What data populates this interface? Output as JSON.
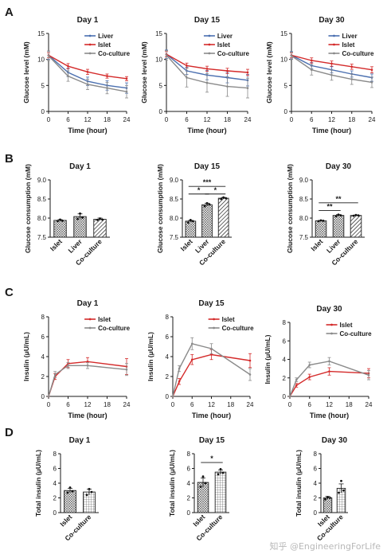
{
  "figure": {
    "panel_labels": [
      "A",
      "B",
      "C",
      "D"
    ],
    "colors": {
      "Liver": "#4a6fb0",
      "Islet": "#d42a2a",
      "Co-culture": "#8a8a8a",
      "bar_edge": "#222222",
      "axis": "#1a1a1a"
    },
    "watermark": "知乎 @EngineeringForLife"
  },
  "chart_data": [
    {
      "id": "A1",
      "panel": "A",
      "type": "line",
      "title": "Day 1",
      "xlabel": "Time (hour)",
      "ylabel": "Glucose level (mM)",
      "xlim": [
        0,
        24
      ],
      "ylim": [
        0,
        15
      ],
      "x_ticks": [
        0,
        6,
        12,
        18,
        24
      ],
      "y_ticks": [
        0,
        5,
        10,
        15
      ],
      "x": [
        0,
        6,
        12,
        18,
        24
      ],
      "legend": "top-right",
      "series": [
        {
          "name": "Liver",
          "values": [
            10.8,
            7.5,
            5.8,
            5.0,
            4.5
          ],
          "err": [
            0.8,
            0.8,
            0.8,
            0.9,
            1.0
          ]
        },
        {
          "name": "Islet",
          "values": [
            10.8,
            8.7,
            7.6,
            6.8,
            6.3
          ],
          "err": [
            0.5,
            0.5,
            0.5,
            0.4,
            0.4
          ]
        },
        {
          "name": "Co-culture",
          "values": [
            10.7,
            6.8,
            5.2,
            4.5,
            3.8
          ],
          "err": [
            0.9,
            1.0,
            1.0,
            1.1,
            1.2
          ]
        }
      ]
    },
    {
      "id": "A2",
      "panel": "A",
      "type": "line",
      "title": "Day 15",
      "xlabel": "Time (hour)",
      "ylabel": "Glucose level (mM)",
      "xlim": [
        0,
        24
      ],
      "ylim": [
        0,
        15
      ],
      "x_ticks": [
        0,
        6,
        12,
        18,
        24
      ],
      "y_ticks": [
        0,
        5,
        10,
        15
      ],
      "x": [
        0,
        6,
        12,
        18,
        24
      ],
      "legend": "top-right",
      "series": [
        {
          "name": "Liver",
          "values": [
            11.0,
            7.8,
            7.0,
            6.5,
            6.0
          ],
          "err": [
            0.8,
            0.7,
            0.9,
            1.0,
            1.1
          ]
        },
        {
          "name": "Islet",
          "values": [
            11.0,
            8.8,
            8.2,
            7.8,
            7.5
          ],
          "err": [
            0.5,
            0.5,
            0.5,
            0.5,
            0.6
          ]
        },
        {
          "name": "Co-culture",
          "values": [
            10.8,
            6.5,
            5.5,
            4.8,
            4.5
          ],
          "err": [
            0.9,
            1.8,
            1.8,
            1.9,
            1.9
          ]
        }
      ]
    },
    {
      "id": "A3",
      "panel": "A",
      "type": "line",
      "title": "Day 30",
      "xlabel": "Time (hour)",
      "ylabel": "Glucose level (mM)",
      "xlim": [
        0,
        24
      ],
      "ylim": [
        0,
        15
      ],
      "x_ticks": [
        0,
        6,
        12,
        18,
        24
      ],
      "y_ticks": [
        0,
        5,
        10,
        15
      ],
      "x": [
        0,
        6,
        12,
        18,
        24
      ],
      "legend": "top-right",
      "series": [
        {
          "name": "Liver",
          "values": [
            10.8,
            8.8,
            8.0,
            7.2,
            6.5
          ],
          "err": [
            0.7,
            0.6,
            0.6,
            0.6,
            0.7
          ]
        },
        {
          "name": "Islet",
          "values": [
            10.8,
            9.8,
            9.2,
            8.6,
            8.0
          ],
          "err": [
            0.5,
            0.5,
            0.5,
            0.5,
            0.6
          ]
        },
        {
          "name": "Co-culture",
          "values": [
            10.7,
            8.0,
            7.0,
            6.2,
            5.6
          ],
          "err": [
            0.7,
            1.0,
            1.0,
            1.0,
            1.0
          ]
        }
      ]
    },
    {
      "id": "B1",
      "panel": "B",
      "type": "bar",
      "title": "Day 1",
      "ylabel": "Glucose consumption (mM)",
      "ylim": [
        7.5,
        9.0
      ],
      "y_ticks": [
        "7.5",
        "8.0",
        "8.5",
        "9.0"
      ],
      "categories": [
        "Islet",
        "Liver",
        "Co-culture"
      ],
      "values": [
        7.94,
        8.04,
        7.97
      ],
      "err": [
        0.02,
        0.07,
        0.03
      ],
      "points": [
        [
          7.92,
          7.96,
          7.93
        ],
        [
          7.98,
          8.12,
          8.01
        ],
        [
          7.95,
          7.99,
          7.96
        ]
      ],
      "significance": []
    },
    {
      "id": "B2",
      "panel": "B",
      "type": "bar",
      "title": "Day 15",
      "ylabel": "Glucose consumption (mM)",
      "ylim": [
        7.5,
        9.0
      ],
      "y_ticks": [
        "7.5",
        "8.0",
        "8.5",
        "9.0"
      ],
      "categories": [
        "Islet",
        "Liver",
        "Co-culture"
      ],
      "values": [
        7.92,
        8.35,
        8.52
      ],
      "err": [
        0.02,
        0.04,
        0.02
      ],
      "points": [
        [
          7.88,
          7.95,
          7.92
        ],
        [
          8.31,
          8.39,
          8.36
        ],
        [
          8.5,
          8.54,
          8.52
        ]
      ],
      "significance": [
        {
          "from": 0,
          "to": 2,
          "y": 8.83,
          "label": "***"
        },
        {
          "from": 0,
          "to": 1,
          "y": 8.63,
          "label": "*"
        },
        {
          "from": 1,
          "to": 2,
          "y": 8.63,
          "label": "*"
        }
      ]
    },
    {
      "id": "B3",
      "panel": "B",
      "type": "bar",
      "title": "Day 30",
      "ylabel": "Glucose consumption (mM)",
      "ylim": [
        7.5,
        9.0
      ],
      "y_ticks": [
        "7.5",
        "8.0",
        "8.5",
        "9.0"
      ],
      "categories": [
        "Islet",
        "Liver",
        "Co-culture"
      ],
      "values": [
        7.93,
        8.07,
        8.07
      ],
      "err": [
        0.01,
        0.02,
        0.01
      ],
      "points": [
        [
          7.92,
          7.94,
          7.93
        ],
        [
          8.05,
          8.09,
          8.07
        ],
        [
          8.06,
          8.08,
          8.07
        ]
      ],
      "significance": [
        {
          "from": 0,
          "to": 2,
          "y": 8.4,
          "label": "**"
        },
        {
          "from": 0,
          "to": 1,
          "y": 8.2,
          "label": "**"
        }
      ]
    },
    {
      "id": "C1",
      "panel": "C",
      "type": "line",
      "title": "Day 1",
      "xlabel": "Time (hour)",
      "ylabel": "Insulin  (μU/mL)",
      "xlim": [
        0,
        24
      ],
      "ylim": [
        0,
        8
      ],
      "x_ticks": [
        0,
        6,
        12,
        18,
        24
      ],
      "y_ticks": [
        0,
        2,
        4,
        6,
        8
      ],
      "x": [
        0,
        2,
        6,
        12,
        24
      ],
      "legend": "top-right",
      "series": [
        {
          "name": "Islet",
          "values": [
            0,
            2.0,
            3.3,
            3.5,
            3.0
          ],
          "err": [
            0,
            0.3,
            0.4,
            0.4,
            0.8
          ]
        },
        {
          "name": "Co-culture",
          "values": [
            0,
            2.2,
            3.1,
            3.1,
            2.7
          ],
          "err": [
            0,
            0.3,
            0.3,
            0.3,
            0.6
          ]
        }
      ]
    },
    {
      "id": "C2",
      "panel": "C",
      "type": "line",
      "title": "Day 15",
      "xlabel": "Time (hour)",
      "ylabel": "Insulin  (μU/mL)",
      "xlim": [
        0,
        24
      ],
      "ylim": [
        0,
        8
      ],
      "x_ticks": [
        0,
        6,
        12,
        18,
        24
      ],
      "y_ticks": [
        0,
        2,
        4,
        6,
        8
      ],
      "x": [
        0,
        2,
        6,
        12,
        24
      ],
      "legend": "top-right",
      "series": [
        {
          "name": "Islet",
          "values": [
            0,
            1.5,
            3.7,
            4.2,
            3.6
          ],
          "err": [
            0,
            0.3,
            0.5,
            0.5,
            0.7
          ]
        },
        {
          "name": "Co-culture",
          "values": [
            0,
            2.8,
            5.3,
            4.8,
            2.2
          ],
          "err": [
            0,
            0.3,
            0.6,
            0.5,
            0.6
          ]
        }
      ]
    },
    {
      "id": "C3",
      "panel": "C",
      "type": "line",
      "title": "Day 30",
      "xlabel": "Time (hour)",
      "ylabel": "Insulin  (μU/mL)",
      "xlim": [
        0,
        24
      ],
      "ylim": [
        0,
        8
      ],
      "x_ticks": [
        0,
        6,
        12,
        18,
        24
      ],
      "y_ticks": [
        0,
        2,
        4,
        6,
        8
      ],
      "x": [
        0,
        2,
        6,
        12,
        24
      ],
      "legend": "top-right",
      "series": [
        {
          "name": "Islet",
          "values": [
            0,
            1.2,
            2.1,
            2.7,
            2.5
          ],
          "err": [
            0,
            0.2,
            0.3,
            0.4,
            0.5
          ]
        },
        {
          "name": "Co-culture",
          "values": [
            0,
            1.8,
            3.4,
            3.8,
            2.3
          ],
          "err": [
            0,
            0.2,
            0.3,
            0.4,
            0.5
          ]
        }
      ]
    },
    {
      "id": "D1",
      "panel": "D",
      "type": "bar",
      "title": "Day 1",
      "ylabel": "Total insulin  (μU/mL)",
      "ylim": [
        0,
        8
      ],
      "y_ticks": [
        "0",
        "2",
        "4",
        "6",
        "8"
      ],
      "categories": [
        "Islet",
        "Co-culture"
      ],
      "values": [
        3.0,
        2.8
      ],
      "err": [
        0.3,
        0.4
      ],
      "points": [
        [
          2.7,
          3.4,
          2.9
        ],
        [
          2.4,
          3.2,
          2.8
        ]
      ],
      "significance": []
    },
    {
      "id": "D2",
      "panel": "D",
      "type": "bar",
      "title": "Day 15",
      "ylabel": "Total insulin  (μU/mL)",
      "ylim": [
        0,
        8
      ],
      "y_ticks": [
        "0",
        "2",
        "4",
        "6",
        "8"
      ],
      "categories": [
        "Islet",
        "Co-culture"
      ],
      "values": [
        4.1,
        5.5
      ],
      "err": [
        0.6,
        0.3
      ],
      "points": [
        [
          3.5,
          4.9,
          4.0
        ],
        [
          5.2,
          5.9,
          5.4
        ]
      ],
      "significance": [
        {
          "from": 0,
          "to": 1,
          "y": 6.8,
          "label": "*"
        }
      ]
    },
    {
      "id": "D3",
      "panel": "D",
      "type": "bar",
      "title": "Day 30",
      "ylabel": "Total insulin  (μU/mL)",
      "ylim": [
        0,
        8
      ],
      "y_ticks": [
        "0",
        "2",
        "4",
        "6",
        "8"
      ],
      "categories": [
        "Islet",
        "Co-culture"
      ],
      "values": [
        2.0,
        3.3
      ],
      "err": [
        0.2,
        0.6
      ],
      "points": [
        [
          1.8,
          2.1,
          2.0
        ],
        [
          2.7,
          4.3,
          3.0
        ]
      ],
      "significance": []
    }
  ]
}
